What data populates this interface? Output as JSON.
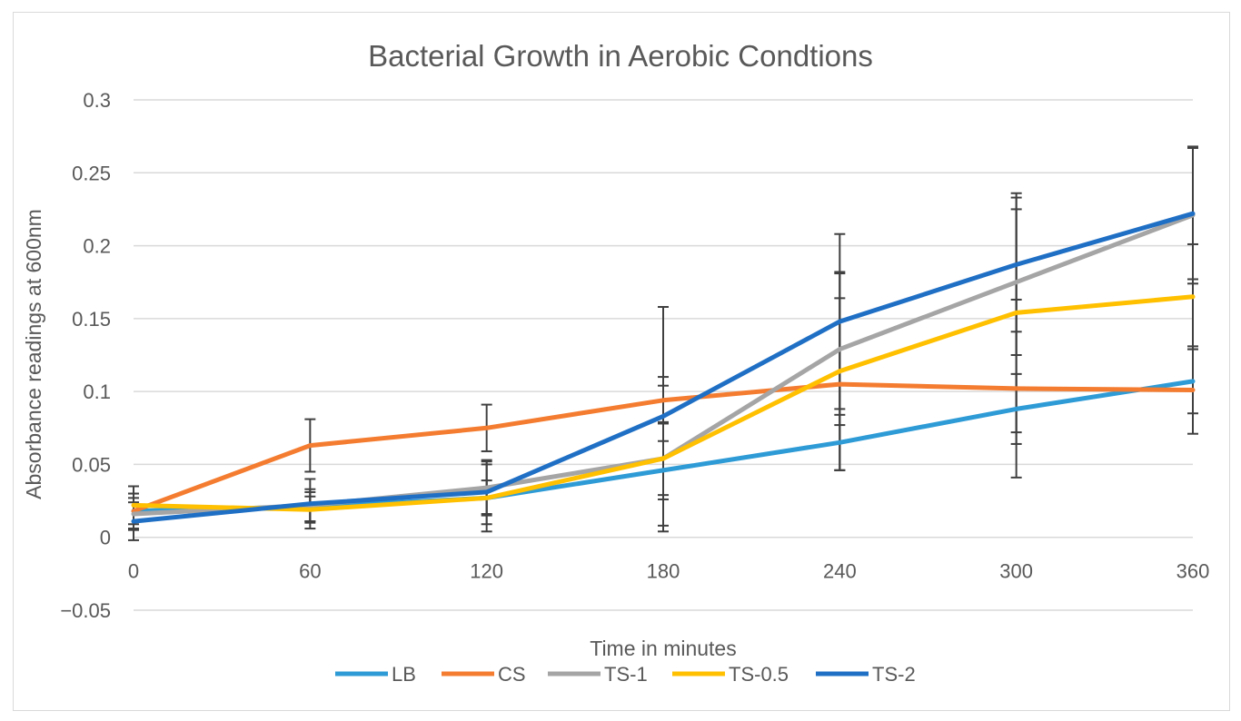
{
  "chart_data": {
    "type": "line",
    "title": "Bacterial Growth in Aerobic Condtions",
    "xlabel": "Time in minutes",
    "ylabel": "Absorbance readings at 600nm",
    "x": [
      0,
      60,
      120,
      180,
      240,
      300,
      360
    ],
    "x_tick_labels": [
      "0",
      "60",
      "120",
      "180",
      "240",
      "300",
      "360"
    ],
    "ylim": [
      -0.05,
      0.3
    ],
    "y_ticks": [
      -0.05,
      0,
      0.05,
      0.1,
      0.15,
      0.2,
      0.25,
      0.3
    ],
    "y_tick_labels": [
      "−0.05",
      "0",
      "0.05",
      "0.1",
      "0.15",
      "0.2",
      "0.25",
      "0.3"
    ],
    "grid": true,
    "legend_position": "bottom",
    "series": [
      {
        "name": "LB",
        "color": "#2e9bd6",
        "values": [
          0.018,
          0.021,
          0.027,
          0.046,
          0.065,
          0.088,
          0.107
        ],
        "errors": [
          0.012,
          0.01,
          0.012,
          0.02,
          0.019,
          0.024,
          0.022
        ]
      },
      {
        "name": "CS",
        "color": "#f47c30",
        "values": [
          0.018,
          0.063,
          0.075,
          0.094,
          0.105,
          0.102,
          0.101
        ],
        "errors": [
          0.012,
          0.018,
          0.016,
          0.016,
          0.059,
          0.061,
          0.03
        ]
      },
      {
        "name": "TS-1",
        "color": "#a5a5a5",
        "values": [
          0.016,
          0.022,
          0.034,
          0.054,
          0.129,
          0.175,
          0.221
        ],
        "errors": [
          0.011,
          0.011,
          0.018,
          0.025,
          0.052,
          0.05,
          0.047
        ]
      },
      {
        "name": "TS-0.5",
        "color": "#ffc000",
        "values": [
          0.022,
          0.019,
          0.027,
          0.054,
          0.114,
          0.154,
          0.165
        ],
        "errors": [
          0.013,
          0.009,
          0.023,
          0.05,
          0.068,
          0.082,
          0.036
        ]
      },
      {
        "name": "TS-2",
        "color": "#1f6fc5",
        "values": [
          0.011,
          0.023,
          0.031,
          0.083,
          0.148,
          0.187,
          0.222
        ],
        "errors": [
          0.013,
          0.017,
          0.022,
          0.075,
          0.06,
          0.046,
          0.045
        ]
      }
    ]
  }
}
